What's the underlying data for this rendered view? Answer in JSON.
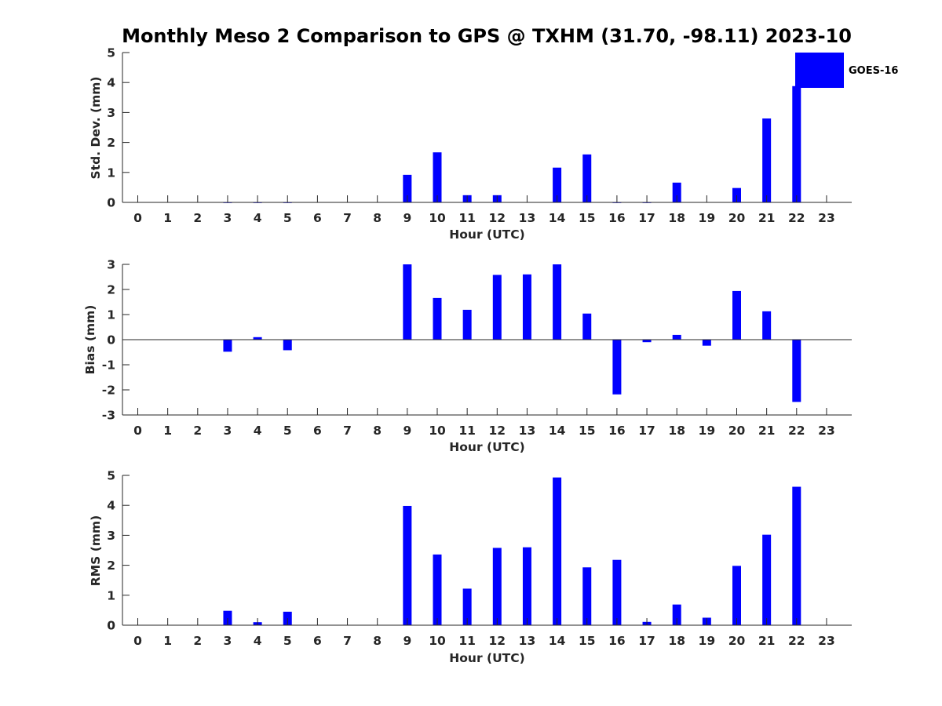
{
  "chart_data": {
    "title": "Monthly Meso 2 Comparison to GPS @ TXHM (31.70, -98.11) 2023-10",
    "type": "bar",
    "legend": {
      "label": "GOES-16",
      "color": "#0000FF",
      "position": "top-right"
    },
    "bar_color": "#0000FF",
    "categories": [
      "0",
      "1",
      "2",
      "3",
      "4",
      "5",
      "6",
      "7",
      "8",
      "9",
      "10",
      "11",
      "12",
      "13",
      "14",
      "15",
      "16",
      "17",
      "18",
      "19",
      "20",
      "21",
      "22",
      "23"
    ],
    "panels": [
      {
        "id": "stddev",
        "ylabel": "Std. Dev. (mm)",
        "xlabel": "Hour (UTC)",
        "ylim": [
          0,
          5
        ],
        "yticks": [
          "0",
          "1",
          "2",
          "3",
          "4",
          "5"
        ],
        "values": [
          null,
          null,
          null,
          0,
          0,
          0,
          null,
          null,
          null,
          0.92,
          1.67,
          0.24,
          0.24,
          null,
          1.16,
          1.6,
          0,
          0,
          0.66,
          null,
          0.48,
          2.8,
          3.88,
          null
        ]
      },
      {
        "id": "bias",
        "ylabel": "Bias (mm)",
        "xlabel": "Hour (UTC)",
        "ylim": [
          -3,
          3
        ],
        "yticks": [
          "-3",
          "-2",
          "-1",
          "0",
          "1",
          "2",
          "3"
        ],
        "values": [
          null,
          null,
          null,
          -0.48,
          0.1,
          -0.42,
          null,
          null,
          null,
          3.0,
          1.66,
          1.19,
          2.58,
          2.6,
          3.0,
          1.04,
          -2.18,
          -0.1,
          0.19,
          -0.24,
          1.94,
          1.13,
          -2.48,
          null
        ]
      },
      {
        "id": "rms",
        "ylabel": "RMS (mm)",
        "xlabel": "Hour (UTC)",
        "ylim": [
          0,
          5
        ],
        "yticks": [
          "0",
          "1",
          "2",
          "3",
          "4",
          "5"
        ],
        "values": [
          null,
          null,
          null,
          0.48,
          0.1,
          0.45,
          null,
          null,
          null,
          3.98,
          2.36,
          1.22,
          2.58,
          2.6,
          4.93,
          1.93,
          2.18,
          0.11,
          0.69,
          0.25,
          1.98,
          3.02,
          4.62,
          null
        ]
      }
    ]
  }
}
